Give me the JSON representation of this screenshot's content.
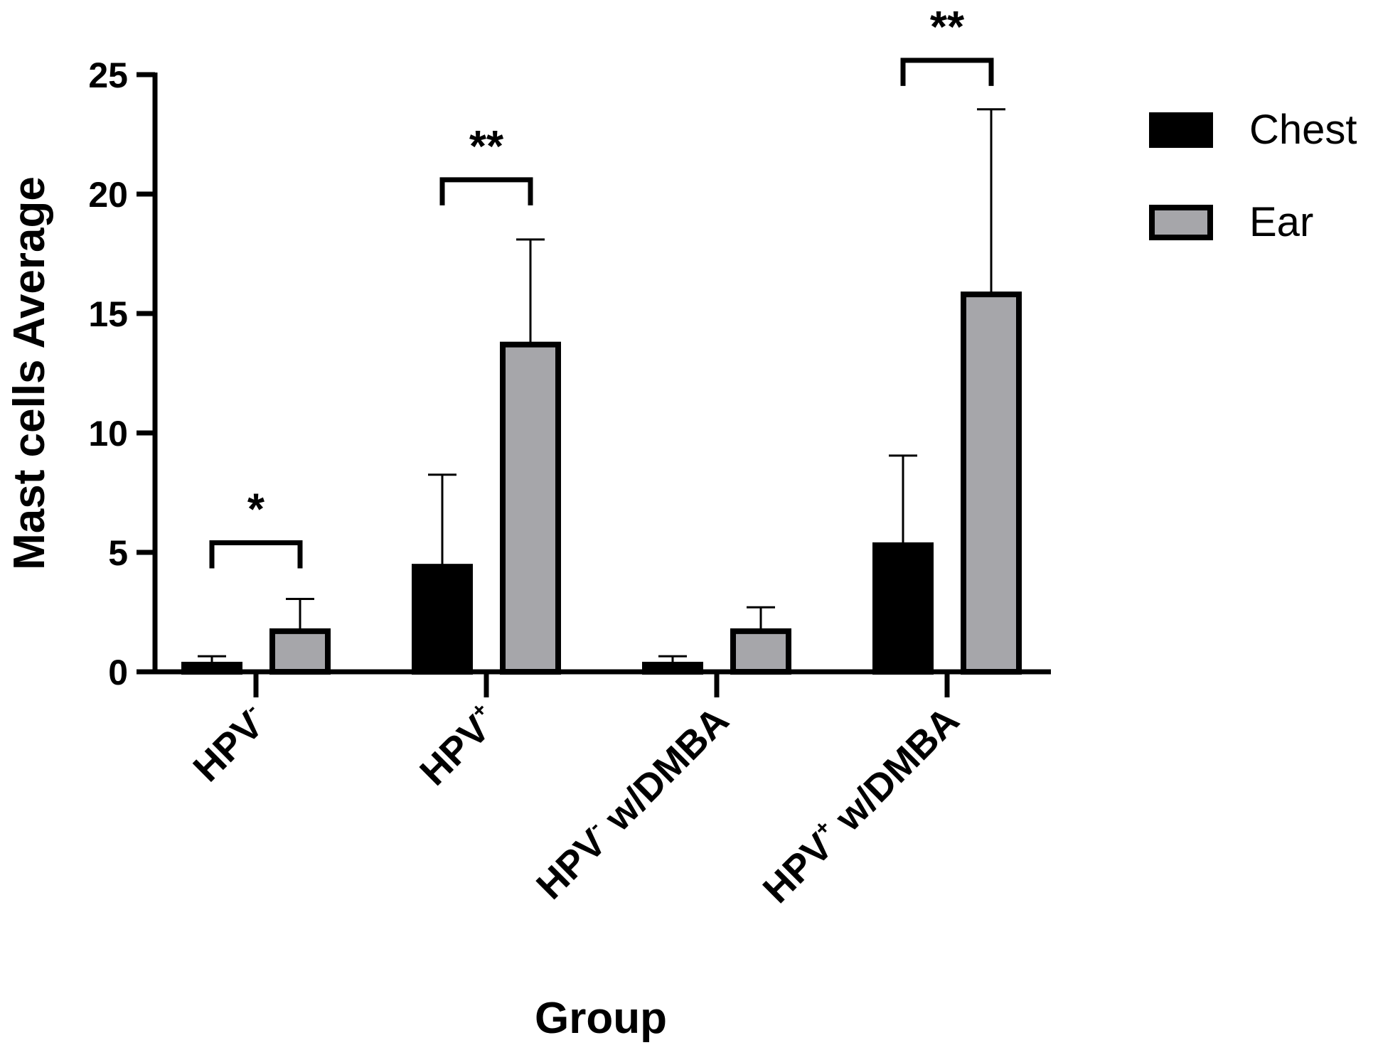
{
  "chart_data": {
    "type": "bar",
    "xlabel": "Group",
    "ylabel": "Mast cells Average",
    "ylim": [
      0,
      25
    ],
    "yticks": [
      "0",
      "5",
      "10",
      "15",
      "20",
      "25"
    ],
    "categories": [
      {
        "base": "HPV",
        "sup": "-",
        "rest": ""
      },
      {
        "base": "HPV",
        "sup": "+",
        "rest": ""
      },
      {
        "base": "HPV",
        "sup": "-",
        "rest": " w/DMBA"
      },
      {
        "base": "HPV",
        "sup": "+",
        "rest": " w/DMBA"
      }
    ],
    "series": [
      {
        "name": "Chest",
        "color": "#000000",
        "values": [
          0.3,
          4.4,
          0.3,
          5.3
        ],
        "errors": [
          0.35,
          3.85,
          0.35,
          3.75
        ]
      },
      {
        "name": "Ear",
        "color": "#a6a6aa",
        "values": [
          1.7,
          13.7,
          1.7,
          15.8
        ],
        "errors": [
          1.35,
          4.4,
          1.0,
          7.75
        ]
      }
    ],
    "significance": [
      {
        "category": 0,
        "label": "*",
        "bracket_y": 5.4
      },
      {
        "category": 1,
        "label": "**",
        "bracket_y": 20.6
      },
      {
        "category": 3,
        "label": "**",
        "bracket_y": 25.6
      }
    ],
    "legend_position": "right"
  }
}
